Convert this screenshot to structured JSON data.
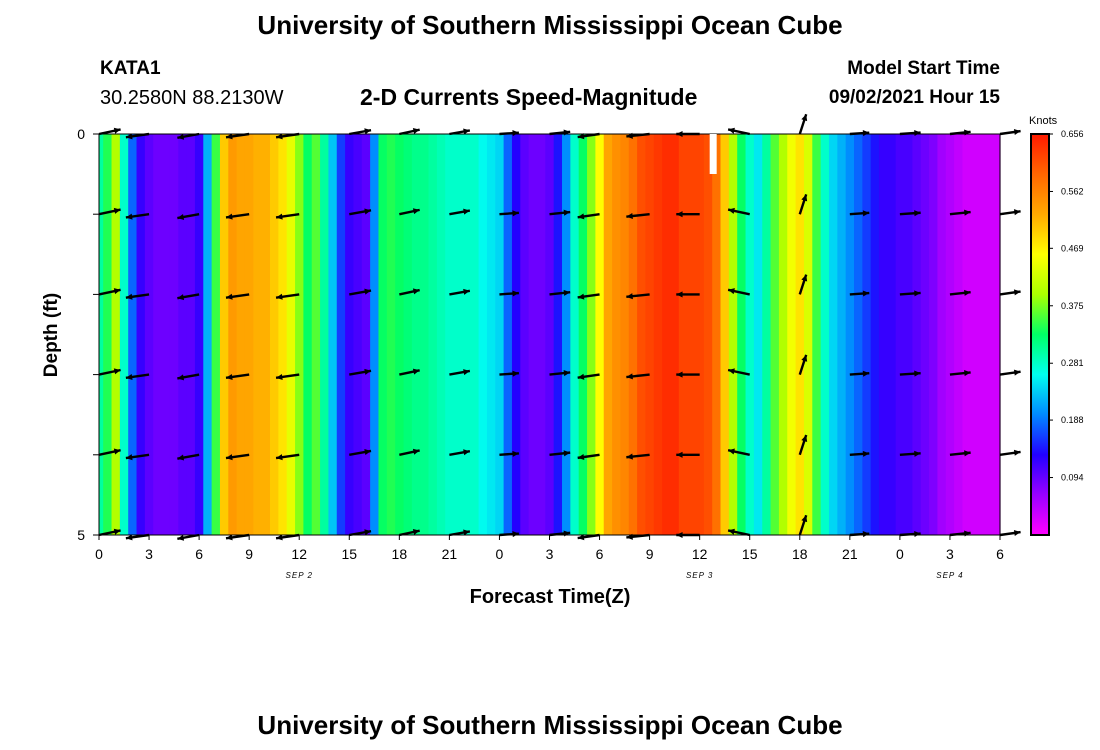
{
  "header": {
    "title": "University of Southern Mississippi Ocean Cube",
    "station_id": "KATA1",
    "coordinates": "30.2580N  88.2130W",
    "subtitle": "2-D Currents Speed-Magnitude",
    "model_start_label": "Model Start Time",
    "model_start_value": "09/02/2021 Hour 15"
  },
  "footer": {
    "title": "University of Southern Mississippi Ocean Cube"
  },
  "chart_data": {
    "type": "heatmap",
    "title": "2-D Currents Speed-Magnitude",
    "xlabel": "Forecast Time(Z)",
    "ylabel": "Depth (ft)",
    "x_tick_labels": [
      "0",
      "3",
      "6",
      "9",
      "12",
      "15",
      "18",
      "21",
      "0",
      "3",
      "6",
      "9",
      "12",
      "15",
      "18",
      "21",
      "0",
      "3",
      "6"
    ],
    "x_range_hours": [
      0,
      54
    ],
    "date_labels": [
      {
        "text": "SEP 2",
        "hour": 12
      },
      {
        "text": "SEP 3",
        "hour": 36
      },
      {
        "text": "SEP 4",
        "hour": 51
      }
    ],
    "y_tick_labels": [
      "0",
      "5"
    ],
    "y_range": [
      0,
      5
    ],
    "colorbar": {
      "unit": "Knots",
      "min": 0,
      "max": 0.656,
      "ticks": [
        "0.656",
        "0.562",
        "0.469",
        "0.375",
        "0.281",
        "0.188",
        "0.094"
      ],
      "colors": [
        "#ff00ff",
        "#9900ff",
        "#2200ff",
        "#0088ff",
        "#00ffee",
        "#00ff66",
        "#aaff00",
        "#ffff00",
        "#ffaa00",
        "#ff6600",
        "#ff1a00"
      ]
    },
    "depths_ft": [
      0,
      1,
      2,
      3,
      4,
      5
    ],
    "hours": [
      0,
      0.5,
      1,
      1.5,
      2,
      2.5,
      3,
      3.5,
      4,
      4.5,
      5,
      5.5,
      6,
      6.5,
      7,
      7.5,
      8,
      8.5,
      9,
      9.5,
      10,
      10.5,
      11,
      11.5,
      12,
      12.5,
      13,
      13.5,
      14,
      14.5,
      15,
      15.5,
      16,
      16.5,
      17,
      17.5,
      18,
      18.5,
      19,
      19.5,
      20,
      20.5,
      21,
      21.5,
      22,
      22.5,
      23,
      23.5,
      24,
      24.5,
      25,
      25.5,
      26,
      26.5,
      27,
      27.5,
      28,
      28.5,
      29,
      29.5,
      30,
      30.5,
      31,
      31.5,
      32,
      32.5,
      33,
      33.5,
      34,
      34.5,
      35,
      35.5,
      36,
      36.5,
      37,
      37.5,
      38,
      38.5,
      39,
      39.5,
      40,
      40.5,
      41,
      41.5,
      42,
      42.5,
      43,
      43.5,
      44,
      44.5,
      45,
      45.5,
      46,
      46.5,
      47,
      47.5,
      48,
      48.5,
      49,
      49.5,
      50,
      50.5,
      51,
      51.5,
      52,
      52.5,
      53,
      53.5,
      54
    ],
    "speed_knots": [
      0.3,
      0.34,
      0.4,
      0.28,
      0.18,
      0.12,
      0.1,
      0.09,
      0.09,
      0.09,
      0.1,
      0.1,
      0.12,
      0.22,
      0.35,
      0.5,
      0.54,
      0.53,
      0.53,
      0.52,
      0.52,
      0.5,
      0.48,
      0.44,
      0.38,
      0.33,
      0.36,
      0.3,
      0.23,
      0.16,
      0.12,
      0.11,
      0.1,
      0.2,
      0.33,
      0.34,
      0.33,
      0.32,
      0.31,
      0.31,
      0.3,
      0.29,
      0.28,
      0.28,
      0.28,
      0.28,
      0.26,
      0.25,
      0.24,
      0.18,
      0.13,
      0.1,
      0.09,
      0.09,
      0.1,
      0.14,
      0.2,
      0.28,
      0.33,
      0.38,
      0.46,
      0.53,
      0.55,
      0.56,
      0.58,
      0.61,
      0.62,
      0.63,
      0.64,
      0.64,
      0.62,
      0.62,
      0.62,
      0.61,
      0.58,
      0.5,
      0.4,
      0.33,
      0.28,
      0.25,
      0.3,
      0.36,
      0.4,
      0.45,
      0.48,
      0.43,
      0.35,
      0.28,
      0.24,
      0.22,
      0.2,
      0.18,
      0.16,
      0.14,
      0.12,
      0.12,
      0.11,
      0.11,
      0.1,
      0.09,
      0.08,
      0.06,
      0.05,
      0.04,
      0.03,
      0.03,
      0.03,
      0.03,
      0.03
    ],
    "vector_hours": [
      0,
      3,
      6,
      9,
      12,
      15,
      18,
      21,
      24,
      27,
      30,
      33,
      36,
      39,
      42,
      45,
      48,
      51,
      54
    ],
    "vector_direction_deg": [
      12,
      8,
      10,
      8,
      8,
      10,
      12,
      10,
      4,
      6,
      8,
      6,
      0,
      -12,
      72,
      4,
      4,
      6,
      8
    ],
    "vector_magnitude_rel": [
      0.85,
      0.9,
      0.85,
      0.9,
      0.9,
      0.85,
      0.8,
      0.8,
      0.75,
      0.8,
      0.85,
      0.9,
      0.9,
      0.85,
      0.8,
      0.75,
      0.8,
      0.8,
      0.8
    ],
    "vector_reversed": [
      false,
      true,
      true,
      true,
      true,
      false,
      false,
      false,
      false,
      false,
      true,
      true,
      true,
      true,
      false,
      false,
      false,
      false,
      false
    ]
  }
}
